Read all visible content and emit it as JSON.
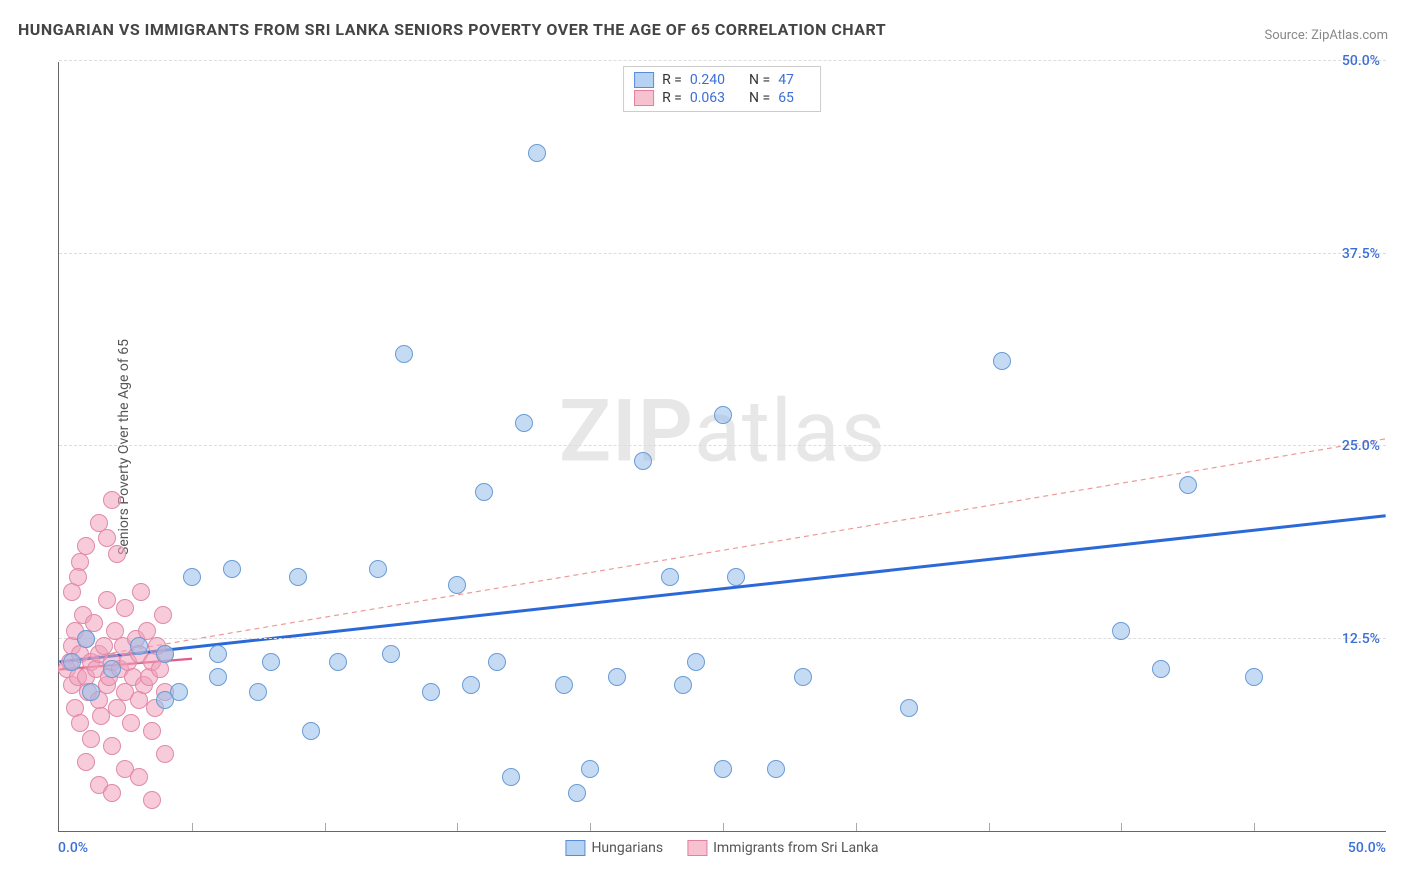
{
  "title": "HUNGARIAN VS IMMIGRANTS FROM SRI LANKA SENIORS POVERTY OVER THE AGE OF 65 CORRELATION CHART",
  "source": "Source: ZipAtlas.com",
  "watermark_a": "ZIP",
  "watermark_b": "atlas",
  "axis": {
    "y_title": "Seniors Poverty Over the Age of 65",
    "xlim": [
      0,
      50
    ],
    "ylim": [
      0,
      50
    ],
    "x_start_label": "0.0%",
    "x_end_label": "50.0%",
    "y_labels": [
      {
        "v": 12.5,
        "t": "12.5%"
      },
      {
        "v": 25.0,
        "t": "25.0%"
      },
      {
        "v": 37.5,
        "t": "37.5%"
      },
      {
        "v": 50.0,
        "t": "50.0%"
      }
    ],
    "x_ticks": [
      5,
      10,
      15,
      20,
      25,
      30,
      35,
      40,
      45
    ],
    "grid_color": "#dddddd",
    "label_color": "#3b6fd6"
  },
  "legend_top": [
    {
      "color_fill": "#b6d2f2",
      "color_border": "#5a8cd6",
      "rlabel": "R =",
      "r": "0.240",
      "nlabel": "N =",
      "n": "47"
    },
    {
      "color_fill": "#f6c2cf",
      "color_border": "#e37fa0",
      "rlabel": "R =",
      "r": "0.063",
      "nlabel": "N =",
      "n": "65"
    }
  ],
  "legend_bottom": [
    {
      "color_fill": "#b6d2f2",
      "color_border": "#5a8cd6",
      "label": "Hungarians"
    },
    {
      "color_fill": "#f6c2cf",
      "color_border": "#e37fa0",
      "label": "Immigrants from Sri Lanka"
    }
  ],
  "series": {
    "hungarians": {
      "fill": "rgba(150,190,235,0.55)",
      "stroke": "#6a9bd6",
      "r": 9,
      "points": [
        [
          0.5,
          11.0
        ],
        [
          1.0,
          12.5
        ],
        [
          1.2,
          9.0
        ],
        [
          2.0,
          10.5
        ],
        [
          3.0,
          12.0
        ],
        [
          4.0,
          11.5
        ],
        [
          4.5,
          9.0
        ],
        [
          5.0,
          16.5
        ],
        [
          6.0,
          11.5
        ],
        [
          6.5,
          17.0
        ],
        [
          7.5,
          9.0
        ],
        [
          8.0,
          11.0
        ],
        [
          9.0,
          16.5
        ],
        [
          9.5,
          6.5
        ],
        [
          10.5,
          11.0
        ],
        [
          12.0,
          17.0
        ],
        [
          12.5,
          11.5
        ],
        [
          13.0,
          31.0
        ],
        [
          14.0,
          9.0
        ],
        [
          15.0,
          16.0
        ],
        [
          15.5,
          9.5
        ],
        [
          16.0,
          22.0
        ],
        [
          16.5,
          11.0
        ],
        [
          17.0,
          3.5
        ],
        [
          17.5,
          26.5
        ],
        [
          18.0,
          44.0
        ],
        [
          19.0,
          9.5
        ],
        [
          19.5,
          2.5
        ],
        [
          20.0,
          4.0
        ],
        [
          21.0,
          10.0
        ],
        [
          22.0,
          24.0
        ],
        [
          23.0,
          16.5
        ],
        [
          23.5,
          9.5
        ],
        [
          24.0,
          11.0
        ],
        [
          25.0,
          4.0
        ],
        [
          25.5,
          16.5
        ],
        [
          25.0,
          27.0
        ],
        [
          27.0,
          4.0
        ],
        [
          28.0,
          10.0
        ],
        [
          32.0,
          8.0
        ],
        [
          35.5,
          30.5
        ],
        [
          40.0,
          13.0
        ],
        [
          41.5,
          10.5
        ],
        [
          42.5,
          22.5
        ],
        [
          45.0,
          10.0
        ],
        [
          4.0,
          8.5
        ],
        [
          6.0,
          10.0
        ]
      ],
      "trend": {
        "y0": 11.0,
        "y1": 20.5,
        "x0": 0,
        "x1": 50,
        "color": "#2b68d8",
        "width": 3,
        "dash": "none"
      },
      "trend_ext": {
        "y0": 11.0,
        "y1": 25.5,
        "x0": 0,
        "x1": 50,
        "color": "#e99",
        "width": 1.2,
        "dash": "5,4"
      }
    },
    "srilanka": {
      "fill": "rgba(240,160,185,0.55)",
      "stroke": "#e08aa8",
      "r": 9,
      "points": [
        [
          0.3,
          10.5
        ],
        [
          0.4,
          11.0
        ],
        [
          0.5,
          9.5
        ],
        [
          0.5,
          12.0
        ],
        [
          0.6,
          8.0
        ],
        [
          0.6,
          13.0
        ],
        [
          0.7,
          10.0
        ],
        [
          0.8,
          11.5
        ],
        [
          0.8,
          7.0
        ],
        [
          0.9,
          14.0
        ],
        [
          1.0,
          10.0
        ],
        [
          1.0,
          12.5
        ],
        [
          1.1,
          9.0
        ],
        [
          1.2,
          11.0
        ],
        [
          1.2,
          6.0
        ],
        [
          1.3,
          13.5
        ],
        [
          1.4,
          10.5
        ],
        [
          1.5,
          8.5
        ],
        [
          1.5,
          11.5
        ],
        [
          1.6,
          7.5
        ],
        [
          1.7,
          12.0
        ],
        [
          1.8,
          9.5
        ],
        [
          1.8,
          15.0
        ],
        [
          1.9,
          10.0
        ],
        [
          2.0,
          11.0
        ],
        [
          2.0,
          5.5
        ],
        [
          2.1,
          13.0
        ],
        [
          2.2,
          8.0
        ],
        [
          2.3,
          10.5
        ],
        [
          2.4,
          12.0
        ],
        [
          2.5,
          9.0
        ],
        [
          2.5,
          14.5
        ],
        [
          2.6,
          11.0
        ],
        [
          2.7,
          7.0
        ],
        [
          2.8,
          10.0
        ],
        [
          2.9,
          12.5
        ],
        [
          3.0,
          8.5
        ],
        [
          3.0,
          11.5
        ],
        [
          3.1,
          15.5
        ],
        [
          3.2,
          9.5
        ],
        [
          3.3,
          13.0
        ],
        [
          3.4,
          10.0
        ],
        [
          3.5,
          6.5
        ],
        [
          3.5,
          11.0
        ],
        [
          3.6,
          8.0
        ],
        [
          3.7,
          12.0
        ],
        [
          3.8,
          10.5
        ],
        [
          3.9,
          14.0
        ],
        [
          4.0,
          9.0
        ],
        [
          4.0,
          11.5
        ],
        [
          1.5,
          20.0
        ],
        [
          1.8,
          19.0
        ],
        [
          2.0,
          21.5
        ],
        [
          2.2,
          18.0
        ],
        [
          0.8,
          17.5
        ],
        [
          2.5,
          4.0
        ],
        [
          3.0,
          3.5
        ],
        [
          3.5,
          2.0
        ],
        [
          4.0,
          5.0
        ],
        [
          1.0,
          4.5
        ],
        [
          1.5,
          3.0
        ],
        [
          2.0,
          2.5
        ],
        [
          0.5,
          15.5
        ],
        [
          0.7,
          16.5
        ],
        [
          1.0,
          18.5
        ]
      ],
      "trend": {
        "y0": 10.5,
        "y1": 11.2,
        "x0": 0,
        "x1": 5,
        "color": "#e15d88",
        "width": 2.2,
        "dash": "none"
      }
    }
  }
}
